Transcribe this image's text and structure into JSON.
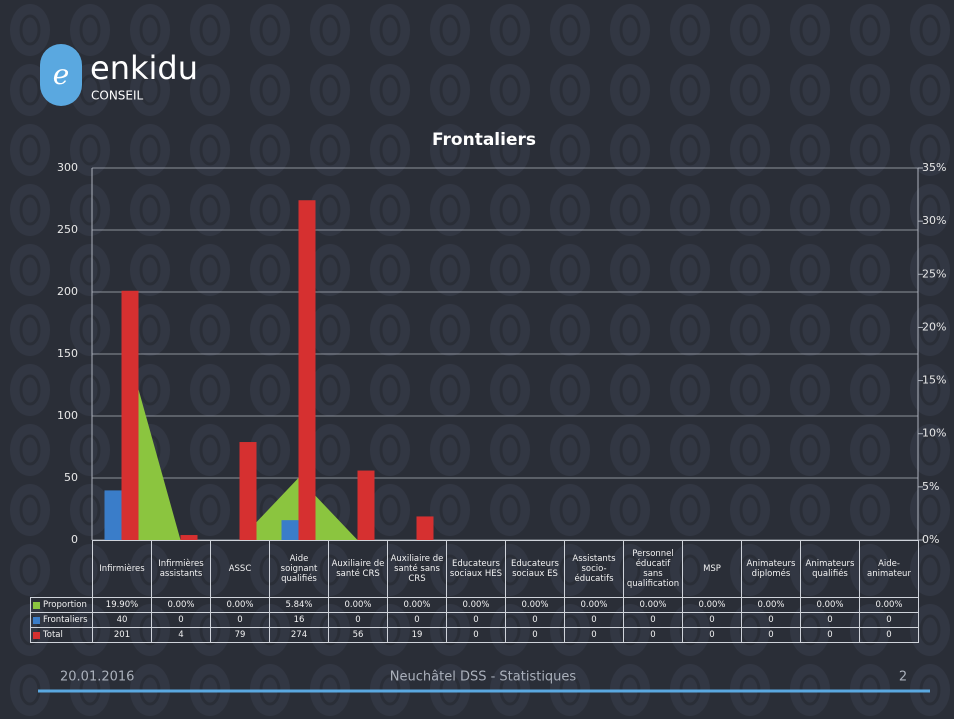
{
  "logo": {
    "name": "enkidu",
    "sub": "CONSEIL"
  },
  "footer": {
    "date": "20.01.2016",
    "center": "Neuchâtel DSS - Statistiques",
    "page": "2"
  },
  "chart_data": {
    "type": "bar",
    "title": "Frontaliers",
    "categories": [
      "Infirmières",
      "Infirmières assistants",
      "ASSC",
      "Aide soignant qualifiés",
      "Auxiliaire de santé CRS",
      "Auxiliaire de santé sans CRS",
      "Educateurs sociaux HES",
      "Educateurs sociaux ES",
      "Assistants socio-éducatifs",
      "Personnel éducatif sans qualification",
      "MSP",
      "Animateurs diplomés",
      "Animateurs qualifiés",
      "Aide-animateur"
    ],
    "series": [
      {
        "name": "Proportion",
        "type": "area",
        "axis": "y2",
        "color": "#8bc53f",
        "values": [
          19.9,
          0,
          0,
          5.84,
          0,
          0,
          0,
          0,
          0,
          0,
          0,
          0,
          0,
          0
        ],
        "value_labels": [
          "19.90%",
          "0.00%",
          "0.00%",
          "5.84%",
          "0.00%",
          "0.00%",
          "0.00%",
          "0.00%",
          "0.00%",
          "0.00%",
          "0.00%",
          "0.00%",
          "0.00%",
          "0.00%"
        ]
      },
      {
        "name": "Frontaliers",
        "type": "bar",
        "color": "#3a7dc9",
        "values": [
          40,
          0,
          0,
          16,
          0,
          0,
          0,
          0,
          0,
          0,
          0,
          0,
          0,
          0
        ]
      },
      {
        "name": "Total",
        "type": "bar",
        "color": "#d63030",
        "values": [
          201,
          4,
          79,
          274,
          56,
          19,
          0,
          0,
          0,
          0,
          0,
          0,
          0,
          0
        ]
      }
    ],
    "ylim": [
      0,
      300
    ],
    "yticks": [
      0,
      50,
      100,
      150,
      200,
      250,
      300
    ],
    "y2lim": [
      0,
      35
    ],
    "y2ticks": [
      {
        "value": 0,
        "label": "0%"
      },
      {
        "value": 5,
        "label": "5%"
      },
      {
        "value": 10,
        "label": "10%"
      },
      {
        "value": 15,
        "label": "15%"
      },
      {
        "value": 20,
        "label": "20%"
      },
      {
        "value": 25,
        "label": "25%"
      },
      {
        "value": 30,
        "label": "30%"
      },
      {
        "value": 35,
        "label": "35%"
      }
    ],
    "grid": true
  }
}
